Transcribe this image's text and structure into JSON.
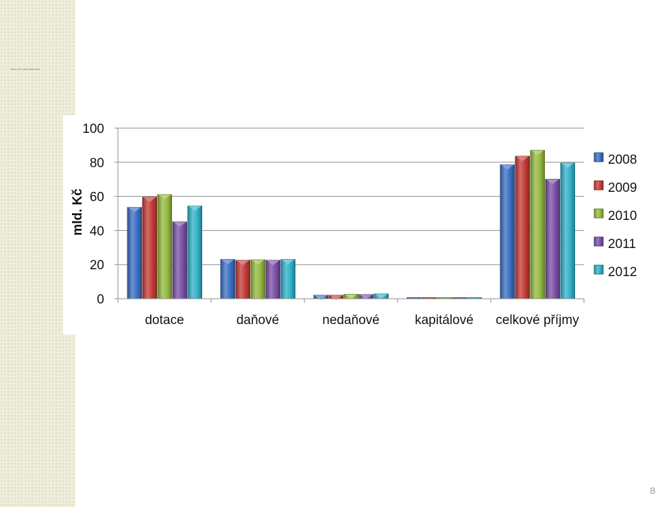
{
  "page": {
    "caption": "Příjmy obcí v letech 2008–2012",
    "number": "8"
  },
  "chart_data": {
    "type": "bar",
    "title": "",
    "xlabel": "",
    "ylabel": "mld. Kč",
    "ylim": [
      0,
      100
    ],
    "yticks": [
      0,
      20,
      40,
      60,
      80,
      100
    ],
    "grid": true,
    "legend_position": "right",
    "categories": [
      "dotace",
      "daňové",
      "nedaňové",
      "kapitálové",
      "celkové příjmy"
    ],
    "series": [
      {
        "name": "2008",
        "color": "#3a6ec2",
        "values": [
          53.5,
          23,
          2,
          0.6,
          78.5
        ]
      },
      {
        "name": "2009",
        "color": "#c43a36",
        "values": [
          59.5,
          22.5,
          2,
          0.6,
          83.5
        ]
      },
      {
        "name": "2010",
        "color": "#93b83d",
        "values": [
          61,
          22.8,
          2.6,
          0.6,
          87
        ]
      },
      {
        "name": "2011",
        "color": "#7a4fa6",
        "values": [
          45,
          22.5,
          2.4,
          0.6,
          70
        ]
      },
      {
        "name": "2012",
        "color": "#2fb0c9",
        "values": [
          54.3,
          23,
          2.8,
          0.6,
          79.5
        ]
      }
    ]
  }
}
